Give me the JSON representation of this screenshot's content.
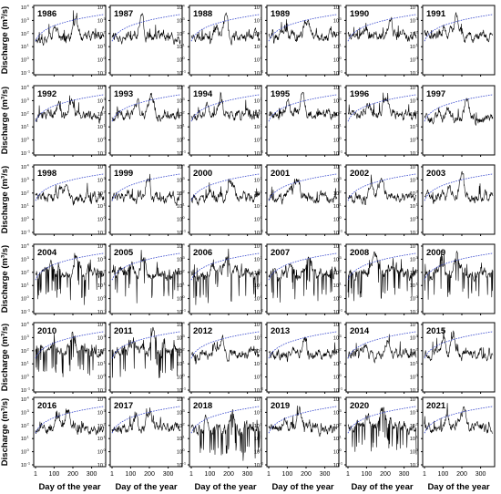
{
  "figure": {
    "ylabel": "Discharge (m³/s)",
    "xlabel": "Day of the year"
  },
  "chart_data": {
    "type": "line",
    "layout": "small-multiples",
    "rows": 6,
    "cols": 6,
    "panels": [
      "1986",
      "1987",
      "1988",
      "1989",
      "1990",
      "1991",
      "1992",
      "1993",
      "1994",
      "1995",
      "1996",
      "1997",
      "1998",
      "1999",
      "2000",
      "2001",
      "2002",
      "2003",
      "2004",
      "2005",
      "2006",
      "2007",
      "2008",
      "2009",
      "2010",
      "2011",
      "2012",
      "2013",
      "2014",
      "2015",
      "2016",
      "2017",
      "2018",
      "2019",
      "2020",
      "2021"
    ],
    "x_ticks": [
      1,
      100,
      200,
      300
    ],
    "xlim": [
      1,
      365
    ],
    "yscale": "log",
    "ylim": [
      0.1,
      10000
    ],
    "y_ticks_exponents": [
      -1,
      0,
      1,
      2,
      3,
      4
    ],
    "series": [
      {
        "role": "daily discharge",
        "style": "solid",
        "color": "#000000"
      },
      {
        "role": "cumulative",
        "style": "dotted",
        "color": "#3344cc"
      }
    ],
    "xtick_labels_row": 5,
    "ylabel_col": 0,
    "grid": false
  }
}
